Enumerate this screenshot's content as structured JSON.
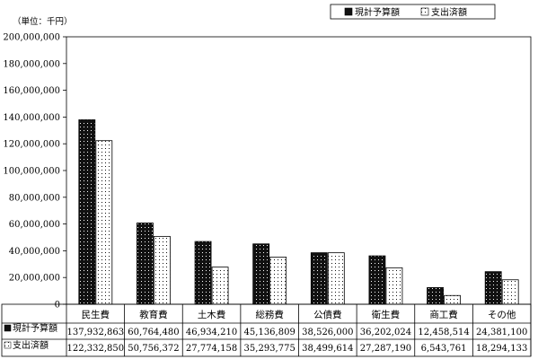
{
  "chart_data": {
    "type": "bar",
    "unit_label": "（単位：千円）",
    "categories": [
      "民生費",
      "教育費",
      "土木費",
      "総務費",
      "公債費",
      "衛生費",
      "商工費",
      "その他"
    ],
    "series": [
      {
        "name": "現計予算額",
        "values": [
          137932863,
          60764480,
          46934210,
          45136809,
          38526000,
          36202024,
          12458514,
          24381100
        ],
        "labels": [
          "137,932,863",
          "60,764,480",
          "46,934,210",
          "45,136,809",
          "38,526,000",
          "36,202,024",
          "12,458,514",
          "24,381,100"
        ],
        "color": "#111111",
        "pattern": "dark-dotted"
      },
      {
        "name": "支出済額",
        "values": [
          122332850,
          50756372,
          27774158,
          35293775,
          38499614,
          27287190,
          6543761,
          18294133
        ],
        "labels": [
          "122,332,850",
          "50,756,372",
          "27,774,158",
          "35,293,775",
          "38,499,614",
          "27,287,190",
          "6,543,761",
          "18,294,133"
        ],
        "color": "#ffffff",
        "pattern": "light-dotted"
      }
    ],
    "y_ticks": [
      "0",
      "20,000,000",
      "40,000,000",
      "60,000,000",
      "80,000,000",
      "100,000,000",
      "120,000,000",
      "140,000,000",
      "160,000,000",
      "180,000,000",
      "200,000,000"
    ],
    "ylim": [
      0,
      200000000
    ],
    "grid": false,
    "legend_position": "top-right",
    "data_table": true
  }
}
